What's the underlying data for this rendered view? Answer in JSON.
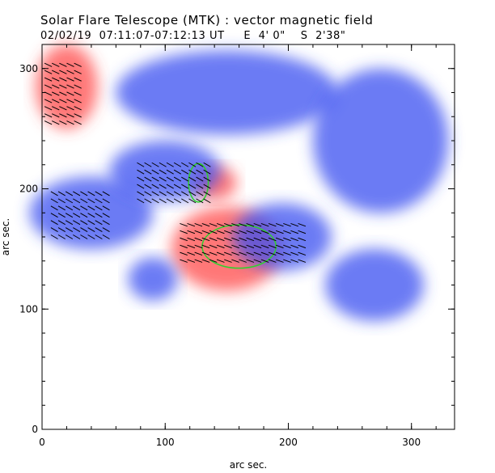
{
  "title": "Solar Flare Telescope (MTK) : vector magnetic field",
  "subtitle": "02/02/19  07:11:07-07:12:13 UT     E  4' 0\"    S  2'38\"",
  "x_axis": {
    "label": "arc sec.",
    "ticks": [
      "0",
      "100",
      "200",
      "300"
    ]
  },
  "y_axis": {
    "label": "arc sec.",
    "ticks": [
      "0",
      "100",
      "200",
      "300"
    ]
  },
  "colors": {
    "positive_polarity": "#ff4a4a",
    "negative_polarity": "#3b4ff0",
    "contour": "#2fd12f",
    "vectors": "#000000"
  },
  "chart_data": {
    "type": "magnetogram",
    "title": "Solar Flare Telescope (MTK) : vector magnetic field",
    "xlabel": "arc sec.",
    "ylabel": "arc sec.",
    "xlim": [
      0,
      335
    ],
    "ylim": [
      0,
      320
    ],
    "xticks": [
      0,
      100,
      200,
      300
    ],
    "yticks": [
      0,
      100,
      200,
      300
    ],
    "regions": [
      {
        "polarity": "positive",
        "center": [
          150,
          150
        ],
        "radius": [
          45,
          35
        ]
      },
      {
        "polarity": "positive",
        "center": [
          20,
          285
        ],
        "radius": [
          25,
          35
        ]
      },
      {
        "polarity": "positive",
        "center": [
          140,
          205
        ],
        "radius": [
          18,
          14
        ]
      },
      {
        "polarity": "negative",
        "center": [
          40,
          180
        ],
        "radius": [
          50,
          30
        ]
      },
      {
        "polarity": "negative",
        "center": [
          100,
          215
        ],
        "radius": [
          45,
          25
        ]
      },
      {
        "polarity": "negative",
        "center": [
          195,
          160
        ],
        "radius": [
          40,
          28
        ]
      },
      {
        "polarity": "negative",
        "center": [
          90,
          125
        ],
        "radius": [
          20,
          18
        ]
      },
      {
        "polarity": "negative",
        "center": [
          150,
          280
        ],
        "radius": [
          90,
          35
        ]
      },
      {
        "polarity": "negative",
        "center": [
          275,
          240
        ],
        "radius": [
          55,
          60
        ]
      },
      {
        "polarity": "negative",
        "center": [
          270,
          120
        ],
        "radius": [
          40,
          30
        ]
      }
    ],
    "contours": [
      {
        "center": [
          160,
          152
        ],
        "radius": [
          30,
          18
        ]
      },
      {
        "center": [
          127,
          205
        ],
        "radius": [
          8,
          16
        ]
      }
    ],
    "vector_groups": [
      {
        "x": [
          5,
          30
        ],
        "y": [
          255,
          305
        ],
        "angle": -25
      },
      {
        "x": [
          10,
          55
        ],
        "y": [
          160,
          200
        ],
        "angle": -30
      },
      {
        "x": [
          80,
          135
        ],
        "y": [
          190,
          225
        ],
        "angle": -30
      },
      {
        "x": [
          115,
          215
        ],
        "y": [
          140,
          175
        ],
        "angle": -20
      }
    ]
  }
}
